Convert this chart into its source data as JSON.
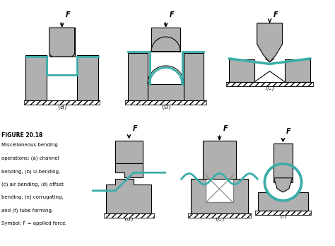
{
  "title": "FIGURE 20.18",
  "caption_lines": [
    "Miscellaneous bending",
    "operations: (a) channel",
    "bending, (b) U-bending,",
    "(c) air bending, (d) offset",
    "bending, (e) corrugating,",
    "and (f) tube forming.",
    "Symbol: F = applied force."
  ],
  "bg_color": "#f5f5f0",
  "gray_color": "#b0b0b0",
  "teal_color": "#3aada8",
  "teal_fill": "#c8e8e6",
  "dark_gray": "#808080",
  "label_color": "#333333",
  "labels": [
    "(a)",
    "(b)",
    "(c)",
    "(d)",
    "(e)",
    "(f)"
  ],
  "force_label": "F"
}
